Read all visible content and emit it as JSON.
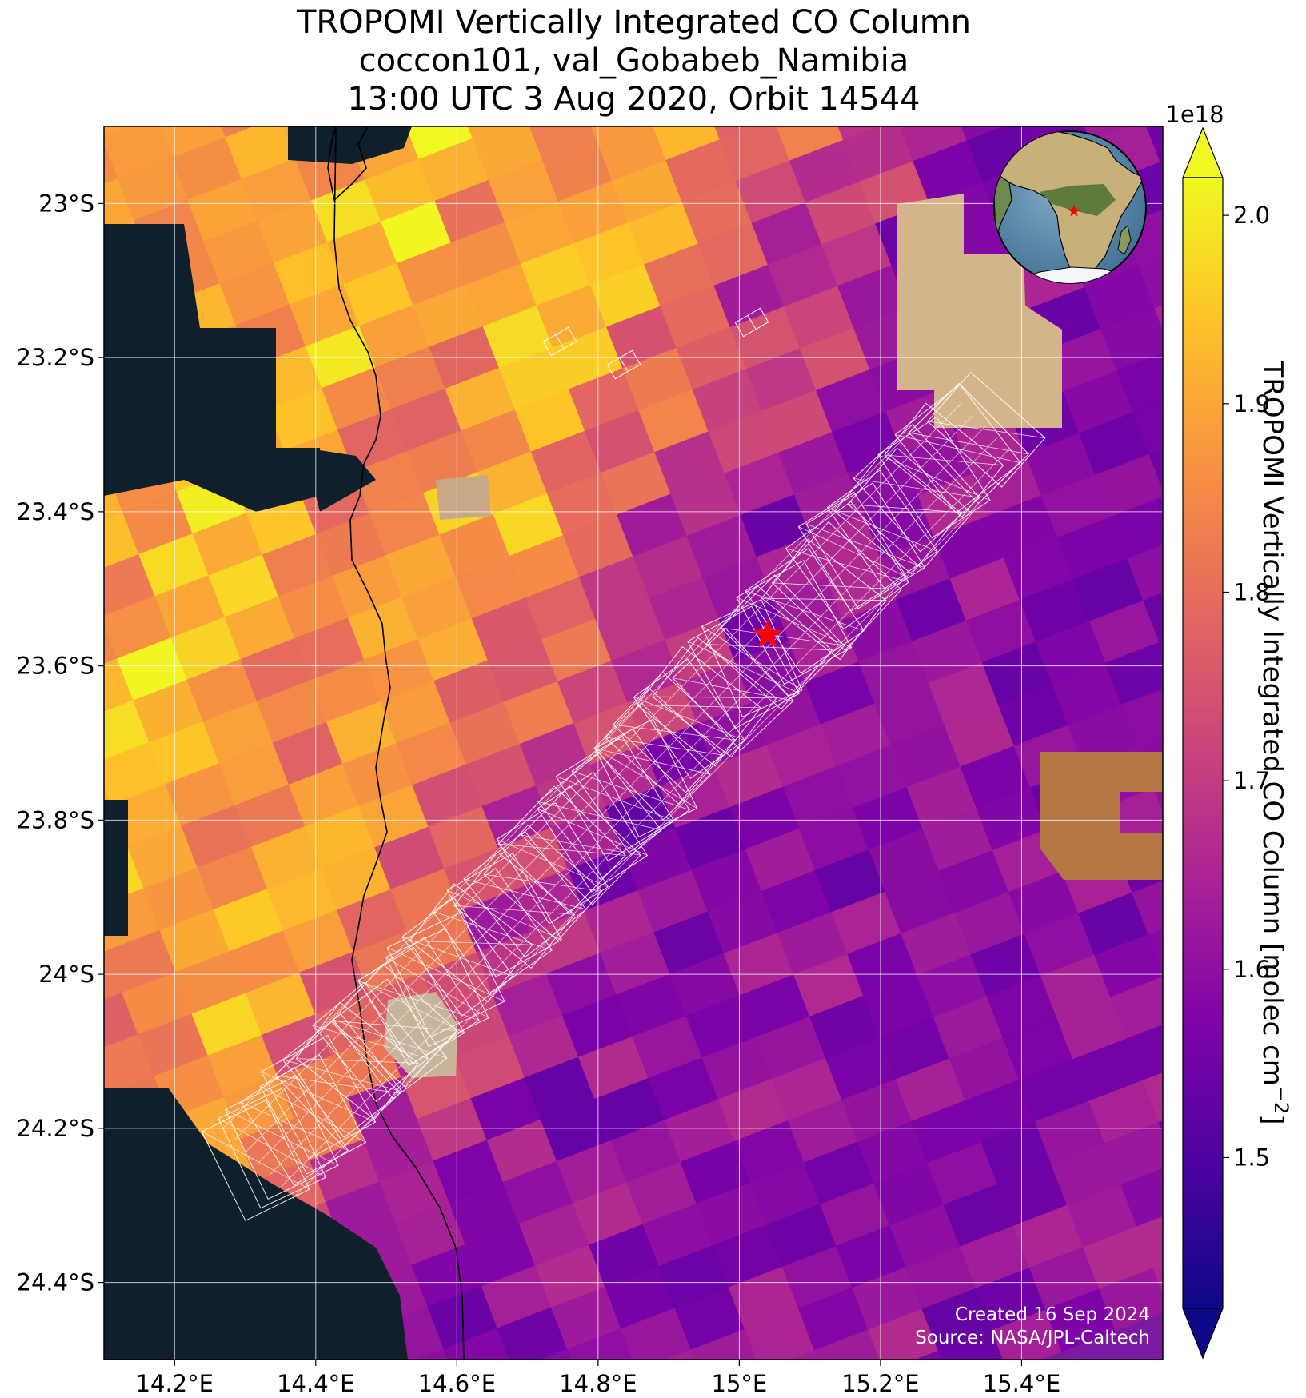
{
  "title": {
    "line1": "TROPOMI Vertically Integrated CO Column",
    "line2": "coccon101, val_Gobabeb_Namibia",
    "line3": "13:00 UTC 3 Aug 2020, Orbit 14544"
  },
  "map": {
    "lon_range": [
      14.1,
      15.6
    ],
    "lat_range": [
      -24.5,
      -22.9
    ],
    "lon_ticks": [
      {
        "value": 14.2,
        "label": "14.2°E"
      },
      {
        "value": 14.4,
        "label": "14.4°E"
      },
      {
        "value": 14.6,
        "label": "14.6°E"
      },
      {
        "value": 14.8,
        "label": "14.8°E"
      },
      {
        "value": 15.0,
        "label": "15°E"
      },
      {
        "value": 15.2,
        "label": "15.2°E"
      },
      {
        "value": 15.4,
        "label": "15.4°E"
      }
    ],
    "lat_ticks": [
      {
        "value": -23.0,
        "label": "23°S"
      },
      {
        "value": -23.2,
        "label": "23.2°S"
      },
      {
        "value": -23.4,
        "label": "23.4°S"
      },
      {
        "value": -23.6,
        "label": "23.6°S"
      },
      {
        "value": -23.8,
        "label": "23.8°S"
      },
      {
        "value": -24.0,
        "label": "24°S"
      },
      {
        "value": -24.2,
        "label": "24.2°S"
      },
      {
        "value": -24.4,
        "label": "24.4°S"
      }
    ],
    "gridlines": true,
    "site": {
      "name": "val_Gobabeb_Namibia",
      "lon": 15.04,
      "lat": -23.56,
      "marker": "red-star"
    },
    "inset_globe": {
      "placement": "top-right",
      "marker": "red-star"
    },
    "footprint_overlay": "white-outline-swath"
  },
  "colorbar": {
    "label": "TROPOMI Vertically Integrated CO Column [molec cm",
    "label_sup": "−2",
    "label_end": "]",
    "multiplier": "1e18",
    "vmin": 1.42,
    "vmax": 2.02,
    "ticks": [
      {
        "value": 1.5,
        "label": "1.5"
      },
      {
        "value": 1.6,
        "label": "1.6"
      },
      {
        "value": 1.7,
        "label": "1.7"
      },
      {
        "value": 1.8,
        "label": "1.8"
      },
      {
        "value": 1.9,
        "label": "1.9"
      },
      {
        "value": 2.0,
        "label": "2.0"
      }
    ],
    "colormap": "plasma",
    "extend": "both"
  },
  "credit": {
    "line1": "Created 16 Sep 2024",
    "line2": "Source: NASA/JPL-Caltech"
  }
}
